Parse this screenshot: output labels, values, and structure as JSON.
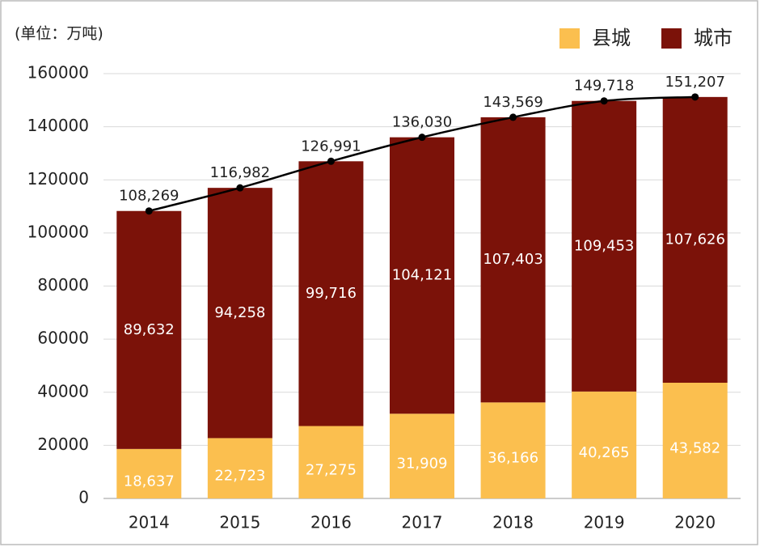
{
  "chart_data": {
    "type": "stacked_bar",
    "unit_note": "(单位：万吨)",
    "categories": [
      "2014",
      "2015",
      "2016",
      "2017",
      "2018",
      "2019",
      "2020"
    ],
    "series": [
      {
        "name": "县城",
        "color": "#fbbf4f",
        "values": [
          18637,
          22723,
          27275,
          31909,
          36166,
          40265,
          43582
        ],
        "value_labels": [
          "18,637",
          "22,723",
          "27,275",
          "31,909",
          "36,166",
          "40,265",
          "43,582"
        ]
      },
      {
        "name": "城市",
        "color": "#7b1209",
        "values": [
          89632,
          94258,
          99716,
          104121,
          107403,
          109453,
          107626
        ],
        "value_labels": [
          "89,632",
          "94,258",
          "99,716",
          "104,121",
          "107,403",
          "109,453",
          "107,626"
        ]
      }
    ],
    "line": {
      "color": "#000000",
      "values": [
        108269,
        116982,
        126991,
        136030,
        143569,
        149718,
        151207
      ],
      "value_labels": [
        "108,269",
        "116,982",
        "126,991",
        "136,030",
        "143,569",
        "149,718",
        "151,207"
      ]
    },
    "ylim": [
      0,
      160000
    ],
    "yticks": [
      0,
      20000,
      40000,
      60000,
      80000,
      100000,
      120000,
      140000,
      160000
    ],
    "grid": true
  }
}
